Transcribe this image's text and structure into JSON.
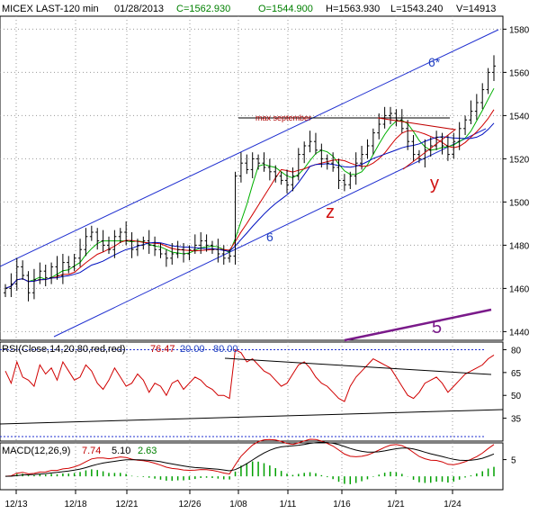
{
  "header": {
    "symbol": "MICEX LAST-120 min",
    "date": "01/28/2013",
    "close": "C=1562.930",
    "open": "O=1544.900",
    "high": "H=1563.930",
    "low": "L=1543.240",
    "volume": "V=14913"
  },
  "chart_data": {
    "type": "candlestick",
    "price_axis": {
      "ticks": [
        "1580",
        "1560",
        "1540",
        "1520",
        "1500",
        "1480",
        "1460",
        "1440"
      ],
      "ylim": [
        1436,
        1586
      ]
    },
    "date_labels": [
      "12/13",
      "12/18",
      "12/21",
      "12/26",
      "1/08",
      "1/11",
      "1/16",
      "1/21",
      "1/24"
    ],
    "price_closes": [
      1460,
      1462,
      1470,
      1466,
      1458,
      1464,
      1468,
      1465,
      1470,
      1466,
      1472,
      1470,
      1474,
      1478,
      1484,
      1486,
      1482,
      1480,
      1478,
      1484,
      1486,
      1482,
      1478,
      1480,
      1482,
      1480,
      1478,
      1476,
      1474,
      1476,
      1478,
      1476,
      1478,
      1480,
      1482,
      1480,
      1478,
      1476,
      1474,
      1475,
      1512,
      1518,
      1515,
      1520,
      1518,
      1516,
      1514,
      1512,
      1510,
      1508,
      1512,
      1522,
      1526,
      1528,
      1524,
      1520,
      1518,
      1516,
      1510,
      1508,
      1512,
      1518,
      1522,
      1526,
      1532,
      1536,
      1540,
      1541,
      1538,
      1534,
      1528,
      1522,
      1520,
      1524,
      1526,
      1530,
      1526,
      1522,
      1528,
      1534,
      1538,
      1542,
      1546,
      1552,
      1560,
      1562.93
    ],
    "annotations": [
      {
        "label": "6*",
        "color": "#2040c0"
      },
      {
        "label": "6",
        "color": "#2040c0"
      },
      {
        "label": "max september",
        "color": "#b00000"
      },
      {
        "label": "z",
        "color": "#d01010"
      },
      {
        "label": "y",
        "color": "#d01010"
      },
      {
        "label": "5",
        "color": "#7a1a8a"
      }
    ],
    "rsi": {
      "title": "RSI(Close,14,20,80,red,red)",
      "value": "76.47",
      "low_level": "20.00",
      "high_level": "80.00",
      "ticks": [
        "80",
        "65",
        "50",
        "35"
      ],
      "ylim": [
        20,
        85
      ],
      "values": [
        66,
        58,
        72,
        62,
        60,
        56,
        70,
        64,
        68,
        60,
        72,
        66,
        60,
        62,
        70,
        66,
        58,
        54,
        60,
        68,
        62,
        56,
        58,
        64,
        60,
        52,
        58,
        56,
        50,
        58,
        60,
        54,
        58,
        62,
        60,
        56,
        54,
        50,
        50,
        48,
        80,
        78,
        72,
        74,
        70,
        66,
        64,
        60,
        56,
        58,
        64,
        70,
        72,
        68,
        62,
        58,
        56,
        52,
        48,
        46,
        56,
        62,
        66,
        70,
        74,
        72,
        70,
        68,
        62,
        56,
        50,
        48,
        52,
        58,
        60,
        62,
        58,
        52,
        56,
        60,
        64,
        66,
        68,
        70,
        74,
        76.47
      ]
    },
    "macd": {
      "title": "MACD(12,26,9)",
      "macd": "7.74",
      "signal": "5.10",
      "histogram": "2.63",
      "ticks": [
        "5"
      ],
      "ylim": [
        -4,
        10
      ]
    }
  }
}
